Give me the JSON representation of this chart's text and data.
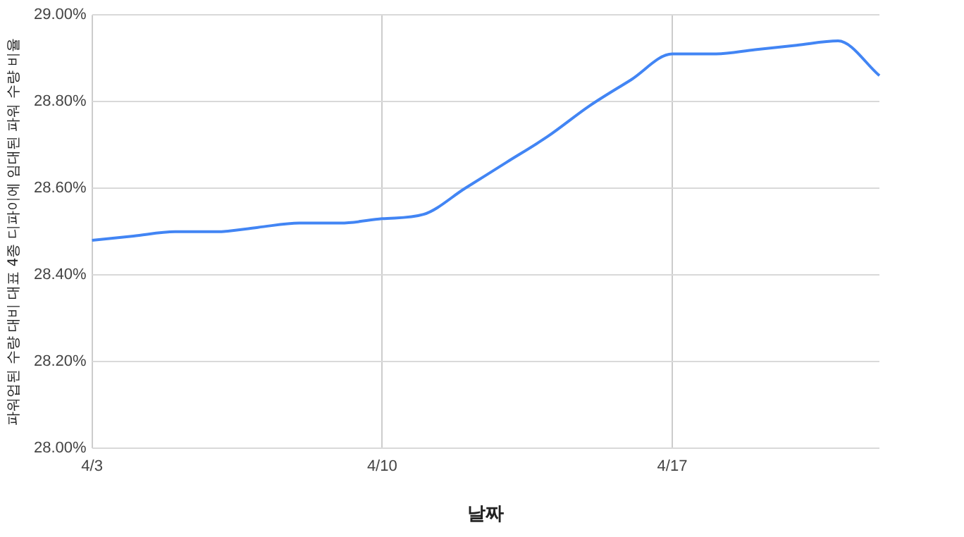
{
  "chart_data": {
    "type": "line",
    "xlabel": "날짜",
    "ylabel": "파워업된 수량 대비 대표 4종 디파이에 임대된 파워 수량 비율",
    "categories": [
      "4/3",
      null,
      null,
      null,
      null,
      null,
      null,
      "4/10",
      null,
      null,
      null,
      null,
      null,
      null,
      "4/17",
      null,
      null,
      null,
      null,
      null
    ],
    "series": [
      {
        "color": "#4285f4",
        "values": [
          28.48,
          28.49,
          28.5,
          28.5,
          28.51,
          28.52,
          28.52,
          28.53,
          28.54,
          28.6,
          28.66,
          28.72,
          28.79,
          28.85,
          28.91,
          28.91,
          28.92,
          28.93,
          28.94,
          28.86
        ]
      }
    ],
    "ylim": [
      28,
      29
    ],
    "yticks": [
      {
        "value": 28,
        "label": "28.00%"
      },
      {
        "value": 28.2,
        "label": "28.20%"
      },
      {
        "value": 28.4,
        "label": "28.40%"
      },
      {
        "value": 28.6,
        "label": "28.60%"
      },
      {
        "value": 28.8,
        "label": "28.80%"
      },
      {
        "value": 29,
        "label": "29.00%"
      }
    ],
    "grid": true,
    "legend": false,
    "marker": "none",
    "line_style": "solid"
  }
}
